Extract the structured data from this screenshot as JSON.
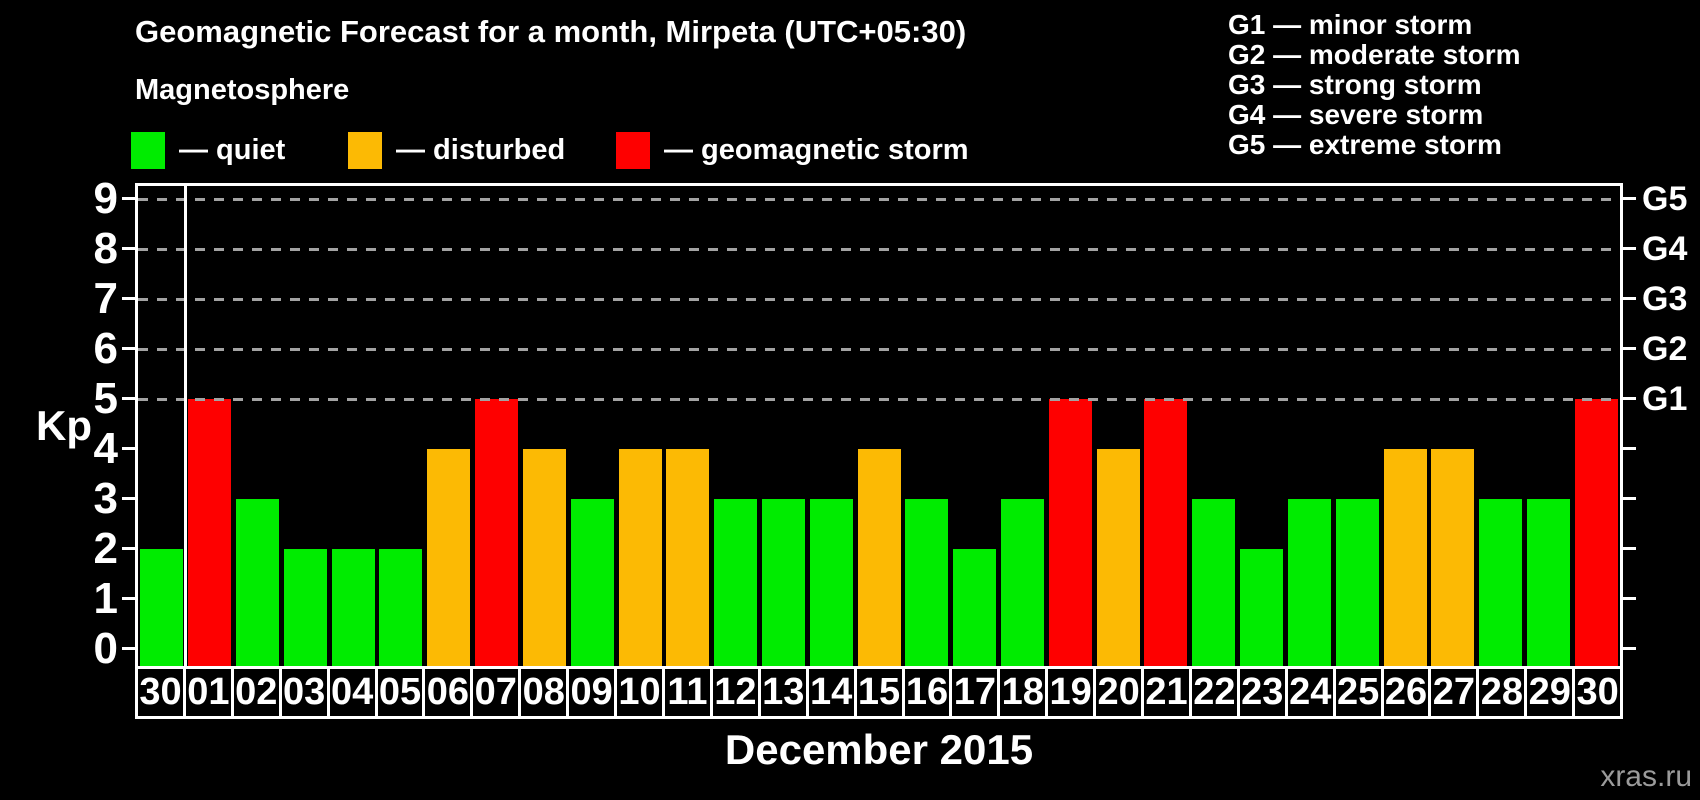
{
  "title": "Geomagnetic Forecast for a month, Mirpeta (UTC+05:30)",
  "subtitle": "Magnetosphere",
  "legend": {
    "items": [
      {
        "label": "— quiet",
        "status": "quiet"
      },
      {
        "label": "— disturbed",
        "status": "disturbed"
      },
      {
        "label": "— geomagnetic storm",
        "status": "storm"
      }
    ]
  },
  "storm_scale": {
    "items": [
      "G1 — minor storm",
      "G2 — moderate storm",
      "G3 — strong storm",
      "G4 — severe storm",
      "G5 — extreme storm"
    ]
  },
  "chart_data": {
    "type": "bar",
    "title": "Geomagnetic Forecast for a month, Mirpeta (UTC+05:30)",
    "xlabel": "December 2015",
    "y_axis_label": "Kp",
    "ylim": [
      0,
      9
    ],
    "y_ticks": [
      0,
      1,
      2,
      3,
      4,
      5,
      6,
      7,
      8,
      9
    ],
    "gridlines_at_kp": [
      5,
      6,
      7,
      8,
      9
    ],
    "grid": "dashed horizontal at G-levels only",
    "legend_position": "top",
    "right_axis_labels": [
      {
        "label": "G1",
        "kp": 5
      },
      {
        "label": "G2",
        "kp": 6
      },
      {
        "label": "G3",
        "kp": 7
      },
      {
        "label": "G4",
        "kp": 8
      },
      {
        "label": "G5",
        "kp": 9
      }
    ],
    "colors": {
      "quiet": "#00ec00",
      "disturbed": "#fcba04",
      "storm": "#fe0000",
      "background": "#000000",
      "axis": "#ffffff",
      "gridline": "#a3a3a3"
    },
    "month_separator_after_index": 0,
    "bars": [
      {
        "date": "30",
        "kp": 2,
        "status": "quiet"
      },
      {
        "date": "01",
        "kp": 5,
        "status": "storm"
      },
      {
        "date": "02",
        "kp": 3,
        "status": "quiet"
      },
      {
        "date": "03",
        "kp": 2,
        "status": "quiet"
      },
      {
        "date": "04",
        "kp": 2,
        "status": "quiet"
      },
      {
        "date": "05",
        "kp": 2,
        "status": "quiet"
      },
      {
        "date": "06",
        "kp": 4,
        "status": "disturbed"
      },
      {
        "date": "07",
        "kp": 5,
        "status": "storm"
      },
      {
        "date": "08",
        "kp": 4,
        "status": "disturbed"
      },
      {
        "date": "09",
        "kp": 3,
        "status": "quiet"
      },
      {
        "date": "10",
        "kp": 4,
        "status": "disturbed"
      },
      {
        "date": "11",
        "kp": 4,
        "status": "disturbed"
      },
      {
        "date": "12",
        "kp": 3,
        "status": "quiet"
      },
      {
        "date": "13",
        "kp": 3,
        "status": "quiet"
      },
      {
        "date": "14",
        "kp": 3,
        "status": "quiet"
      },
      {
        "date": "15",
        "kp": 4,
        "status": "disturbed"
      },
      {
        "date": "16",
        "kp": 3,
        "status": "quiet"
      },
      {
        "date": "17",
        "kp": 2,
        "status": "quiet"
      },
      {
        "date": "18",
        "kp": 3,
        "status": "quiet"
      },
      {
        "date": "19",
        "kp": 5,
        "status": "storm"
      },
      {
        "date": "20",
        "kp": 4,
        "status": "disturbed"
      },
      {
        "date": "21",
        "kp": 5,
        "status": "storm"
      },
      {
        "date": "22",
        "kp": 3,
        "status": "quiet"
      },
      {
        "date": "23",
        "kp": 2,
        "status": "quiet"
      },
      {
        "date": "24",
        "kp": 3,
        "status": "quiet"
      },
      {
        "date": "25",
        "kp": 3,
        "status": "quiet"
      },
      {
        "date": "26",
        "kp": 4,
        "status": "disturbed"
      },
      {
        "date": "27",
        "kp": 4,
        "status": "disturbed"
      },
      {
        "date": "28",
        "kp": 3,
        "status": "quiet"
      },
      {
        "date": "29",
        "kp": 3,
        "status": "quiet"
      },
      {
        "date": "30",
        "kp": 5,
        "status": "storm"
      }
    ]
  },
  "watermark": "xras.ru"
}
